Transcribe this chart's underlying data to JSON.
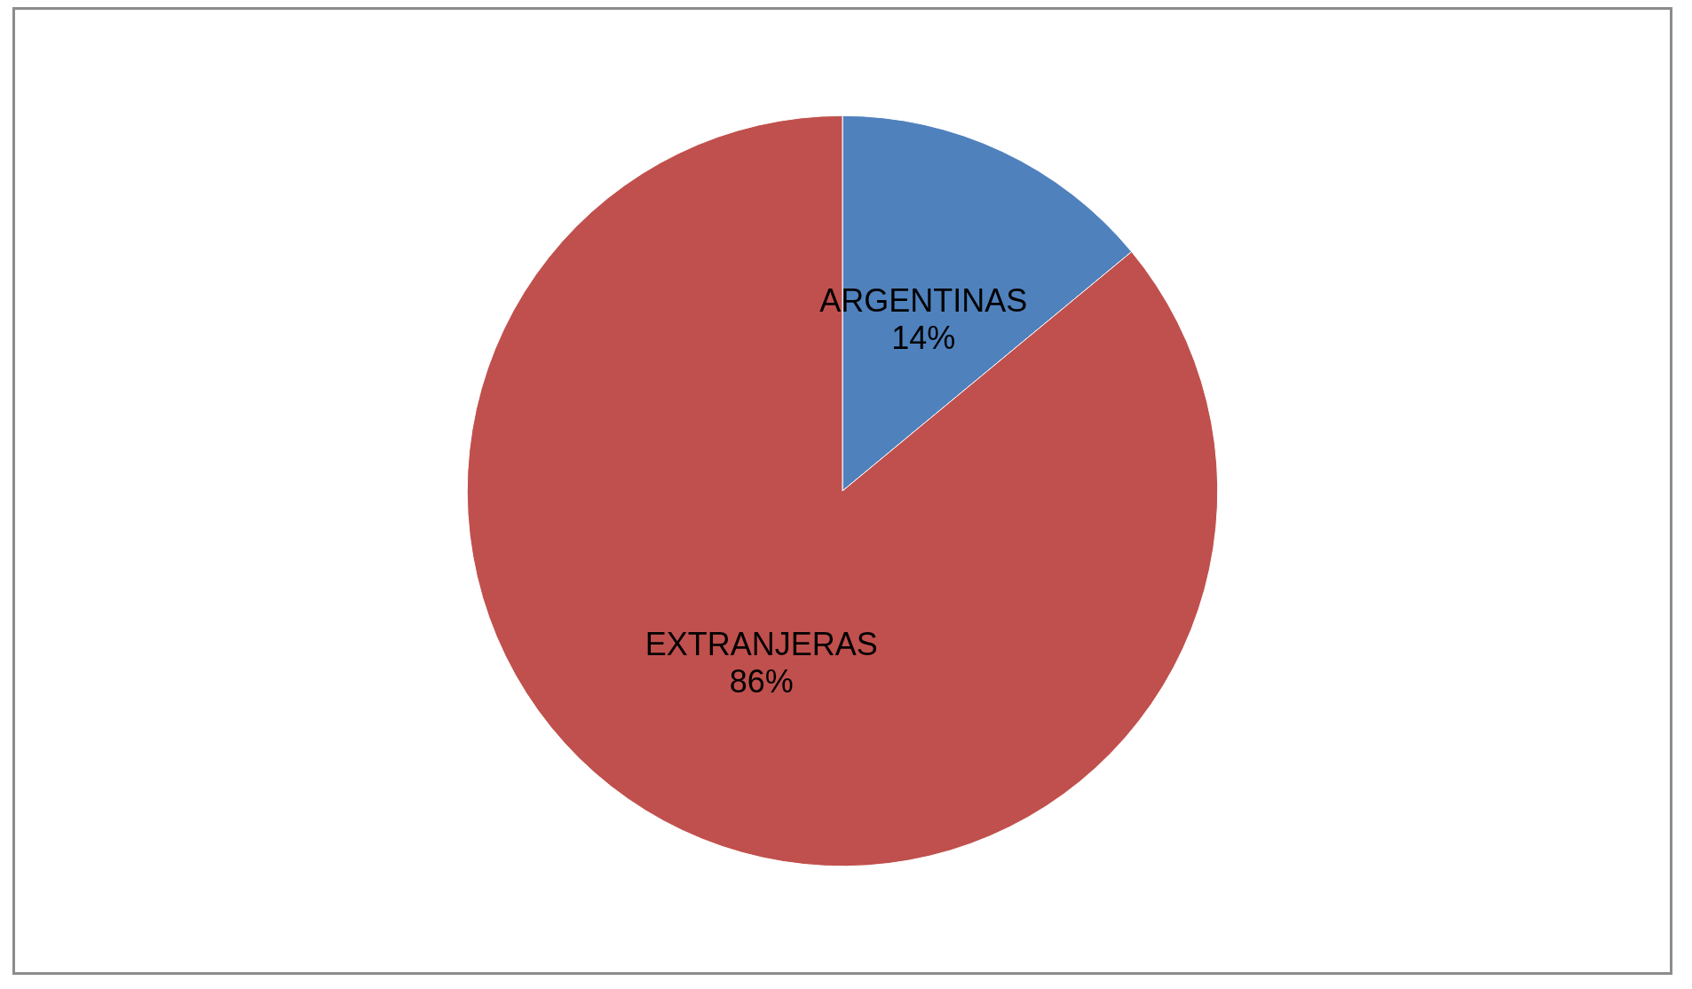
{
  "chart_data": {
    "type": "pie",
    "categories": [
      "ARGENTINAS",
      "EXTRANJERAS"
    ],
    "values": [
      14,
      86
    ],
    "colors": [
      "#4f81bd",
      "#c0504d"
    ],
    "value_labels": [
      "14%",
      "86%"
    ],
    "legend": false
  }
}
